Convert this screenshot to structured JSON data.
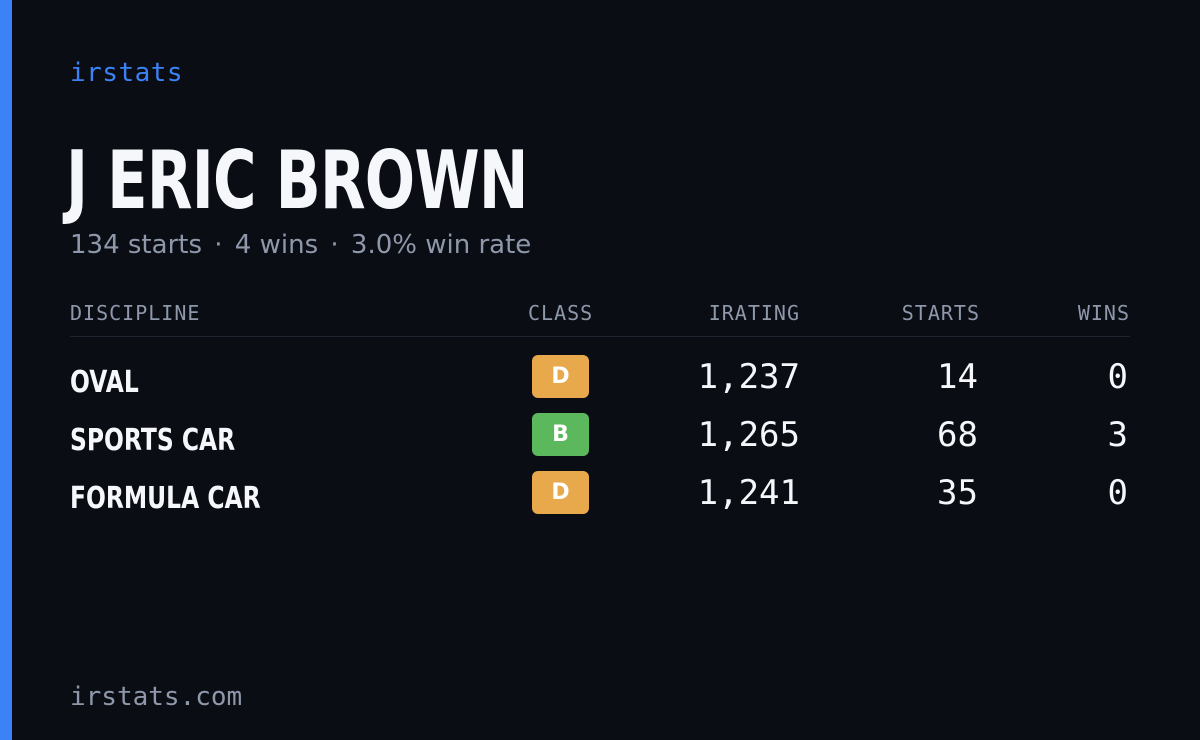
{
  "brand": "irstats",
  "driver": {
    "name": "J ERIC BROWN"
  },
  "summary": {
    "starts": "134 starts",
    "wins": "4 wins",
    "win_rate": "3.0% win rate",
    "separator": "·"
  },
  "table": {
    "headers": {
      "discipline": "DISCIPLINE",
      "class": "CLASS",
      "irating": "IRATING",
      "starts": "STARTS",
      "wins": "WINS"
    },
    "rows": [
      {
        "discipline": "OVAL",
        "class": "D",
        "class_color": "#e8a84c",
        "irating": "1,237",
        "starts": "14",
        "wins": "0"
      },
      {
        "discipline": "SPORTS CAR",
        "class": "B",
        "class_color": "#5cb85c",
        "irating": "1,265",
        "starts": "68",
        "wins": "3"
      },
      {
        "discipline": "FORMULA CAR",
        "class": "D",
        "class_color": "#e8a84c",
        "irating": "1,241",
        "starts": "35",
        "wins": "0"
      }
    ]
  },
  "footer": {
    "site": "irstats.com"
  },
  "colors": {
    "accent": "#3b82f6",
    "background": "#0a0d14",
    "text": "#f5f7fb",
    "muted": "#8e98aa"
  }
}
